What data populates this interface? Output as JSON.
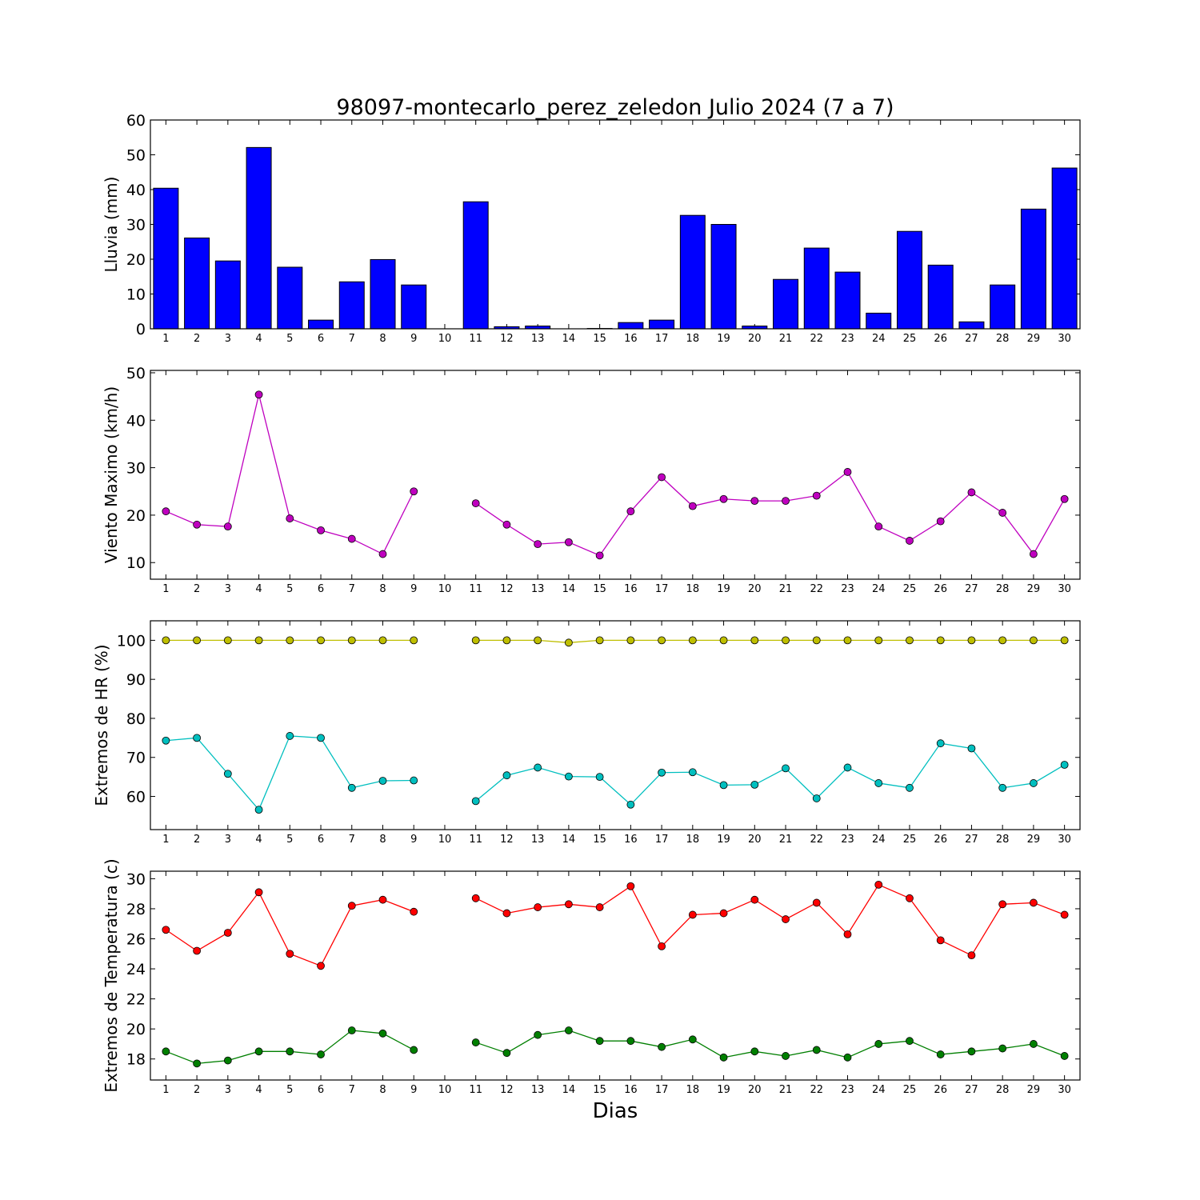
{
  "title": "98097-montecarlo_perez_zeledon Julio 2024  (7 a 7)",
  "xlabel": "Dias",
  "chart_data": [
    {
      "type": "bar",
      "ylabel": "Lluvia (mm)",
      "ylim": [
        0,
        60
      ],
      "yticks": [
        0,
        10,
        20,
        30,
        40,
        50,
        60
      ],
      "x": [
        1,
        2,
        3,
        4,
        5,
        6,
        7,
        8,
        9,
        10,
        11,
        12,
        13,
        14,
        15,
        16,
        17,
        18,
        19,
        20,
        21,
        22,
        23,
        24,
        25,
        26,
        27,
        28,
        29,
        30
      ],
      "series": [
        {
          "color": "#0000ff",
          "values": [
            40.4,
            26.1,
            19.5,
            52.1,
            17.7,
            2.5,
            13.5,
            19.9,
            12.6,
            null,
            36.5,
            0.6,
            0.8,
            0,
            0.1,
            1.8,
            2.5,
            32.6,
            30.0,
            0.8,
            14.2,
            23.2,
            16.3,
            4.5,
            28.0,
            18.3,
            2.0,
            12.6,
            34.4,
            46.2
          ]
        }
      ]
    },
    {
      "type": "line",
      "ylabel": "Viento Maximo (km/h)",
      "ylim": [
        6.5,
        50.5
      ],
      "yticks": [
        10,
        20,
        30,
        40,
        50
      ],
      "x": [
        1,
        2,
        3,
        4,
        5,
        6,
        7,
        8,
        9,
        10,
        11,
        12,
        13,
        14,
        15,
        16,
        17,
        18,
        19,
        20,
        21,
        22,
        23,
        24,
        25,
        26,
        27,
        28,
        29,
        30
      ],
      "series": [
        {
          "color": "#bf00bf",
          "values": [
            20.8,
            18.0,
            17.6,
            45.4,
            19.3,
            16.8,
            15.0,
            11.8,
            25.0,
            null,
            22.5,
            18.0,
            13.9,
            14.3,
            11.5,
            20.8,
            28.0,
            21.9,
            23.4,
            23.0,
            23.0,
            24.1,
            29.1,
            17.6,
            14.6,
            18.7,
            24.8,
            20.5,
            11.8,
            23.4
          ]
        }
      ]
    },
    {
      "type": "line",
      "ylabel": "Extremos de HR (%)",
      "ylim": [
        51.5,
        105
      ],
      "yticks": [
        60,
        70,
        80,
        90,
        100
      ],
      "x": [
        1,
        2,
        3,
        4,
        5,
        6,
        7,
        8,
        9,
        10,
        11,
        12,
        13,
        14,
        15,
        16,
        17,
        18,
        19,
        20,
        21,
        22,
        23,
        24,
        25,
        26,
        27,
        28,
        29,
        30
      ],
      "series": [
        {
          "color": "#bfbf00",
          "values": [
            100,
            100,
            100,
            100,
            100,
            100,
            100,
            100,
            100,
            null,
            100,
            100,
            100,
            99.4,
            100,
            100,
            100,
            100,
            100,
            100,
            100,
            100,
            100,
            100,
            100,
            100,
            100,
            100,
            100,
            100
          ]
        },
        {
          "color": "#00bfbf",
          "values": [
            74.3,
            75.0,
            65.8,
            56.6,
            75.5,
            75.0,
            62.2,
            64.0,
            64.1,
            null,
            58.8,
            65.4,
            67.4,
            65.1,
            65.0,
            57.9,
            66.1,
            66.2,
            62.9,
            63.0,
            67.2,
            59.5,
            67.4,
            63.4,
            62.2,
            73.6,
            72.3,
            62.2,
            63.4,
            68.1
          ]
        }
      ]
    },
    {
      "type": "line",
      "ylabel": "Extremos de Temperatura (c)",
      "ylim": [
        16.6,
        30.5
      ],
      "yticks": [
        18,
        20,
        22,
        24,
        26,
        28,
        30
      ],
      "x": [
        1,
        2,
        3,
        4,
        5,
        6,
        7,
        8,
        9,
        10,
        11,
        12,
        13,
        14,
        15,
        16,
        17,
        18,
        19,
        20,
        21,
        22,
        23,
        24,
        25,
        26,
        27,
        28,
        29,
        30
      ],
      "series": [
        {
          "color": "#ff0000",
          "values": [
            26.6,
            25.2,
            26.4,
            29.1,
            25.0,
            24.2,
            28.2,
            28.6,
            27.8,
            null,
            28.7,
            27.7,
            28.1,
            28.3,
            28.1,
            29.5,
            25.5,
            27.6,
            27.7,
            28.6,
            27.3,
            28.4,
            26.3,
            29.6,
            28.7,
            25.9,
            24.9,
            28.3,
            28.4,
            27.6
          ]
        },
        {
          "color": "#007f00",
          "values": [
            18.5,
            17.7,
            17.9,
            18.5,
            18.5,
            18.3,
            19.9,
            19.7,
            18.6,
            null,
            19.1,
            18.4,
            19.6,
            19.9,
            19.2,
            19.2,
            18.8,
            19.3,
            18.1,
            18.5,
            18.2,
            18.6,
            18.1,
            19.0,
            19.2,
            18.3,
            18.5,
            18.7,
            19.0,
            18.2
          ]
        }
      ]
    }
  ]
}
